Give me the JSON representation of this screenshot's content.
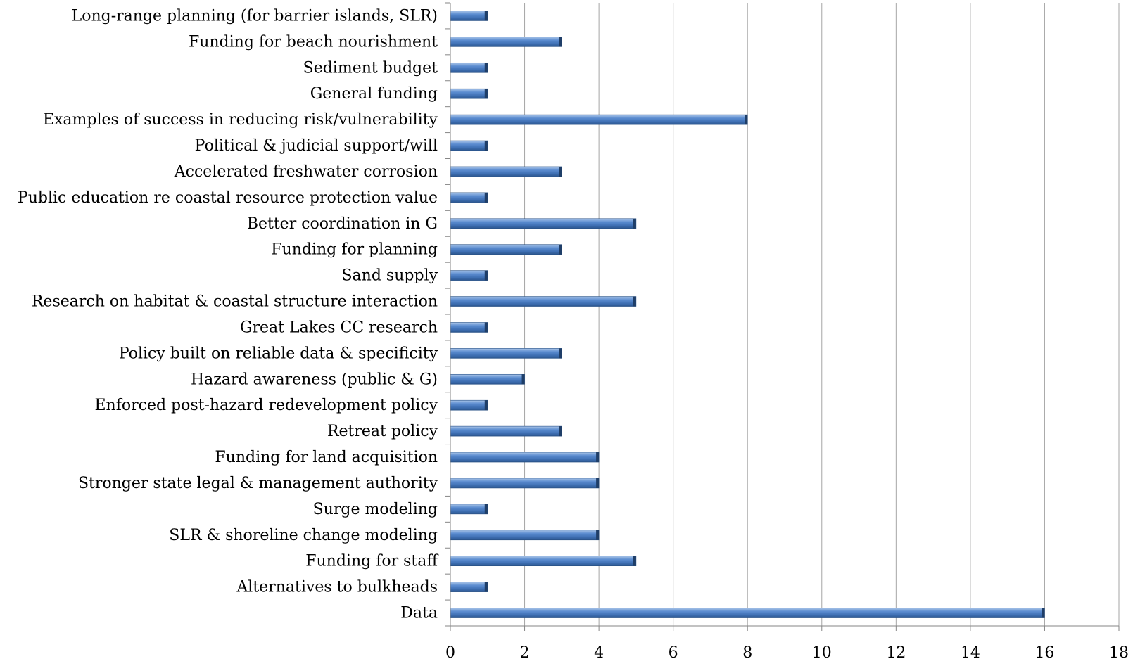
{
  "chart_data": {
    "type": "bar",
    "orientation": "horizontal",
    "title": "",
    "xlabel": "",
    "ylabel": "",
    "xlim": [
      0,
      18
    ],
    "x_ticks": [
      0,
      2,
      4,
      6,
      8,
      10,
      12,
      14,
      16,
      18
    ],
    "grid": "vertical",
    "legend": "none",
    "bar_color": "#4f81bd",
    "categories": [
      "Long-range planning (for barrier islands, SLR)",
      "Funding for beach nourishment",
      "Sediment budget",
      "General funding",
      "Examples of success in reducing risk/vulnerability",
      "Political & judicial support/will",
      "Accelerated freshwater corrosion",
      "Public education re coastal resource protection value",
      "Better coordination in G",
      "Funding for planning",
      "Sand supply",
      "Research on habitat & coastal structure interaction",
      "Great Lakes CC research",
      "Policy built on reliable data & specificity",
      "Hazard awareness (public & G)",
      "Enforced post-hazard redevelopment policy",
      "Retreat policy",
      "Funding for land acquisition",
      "Stronger state legal & management authority",
      "Surge modeling",
      "SLR & shoreline change modeling",
      "Funding for staff",
      "Alternatives to bulkheads",
      "Data"
    ],
    "values": [
      1,
      3,
      1,
      1,
      8,
      1,
      3,
      1,
      5,
      3,
      1,
      5,
      1,
      3,
      2,
      1,
      3,
      4,
      4,
      1,
      4,
      5,
      1,
      16
    ]
  }
}
